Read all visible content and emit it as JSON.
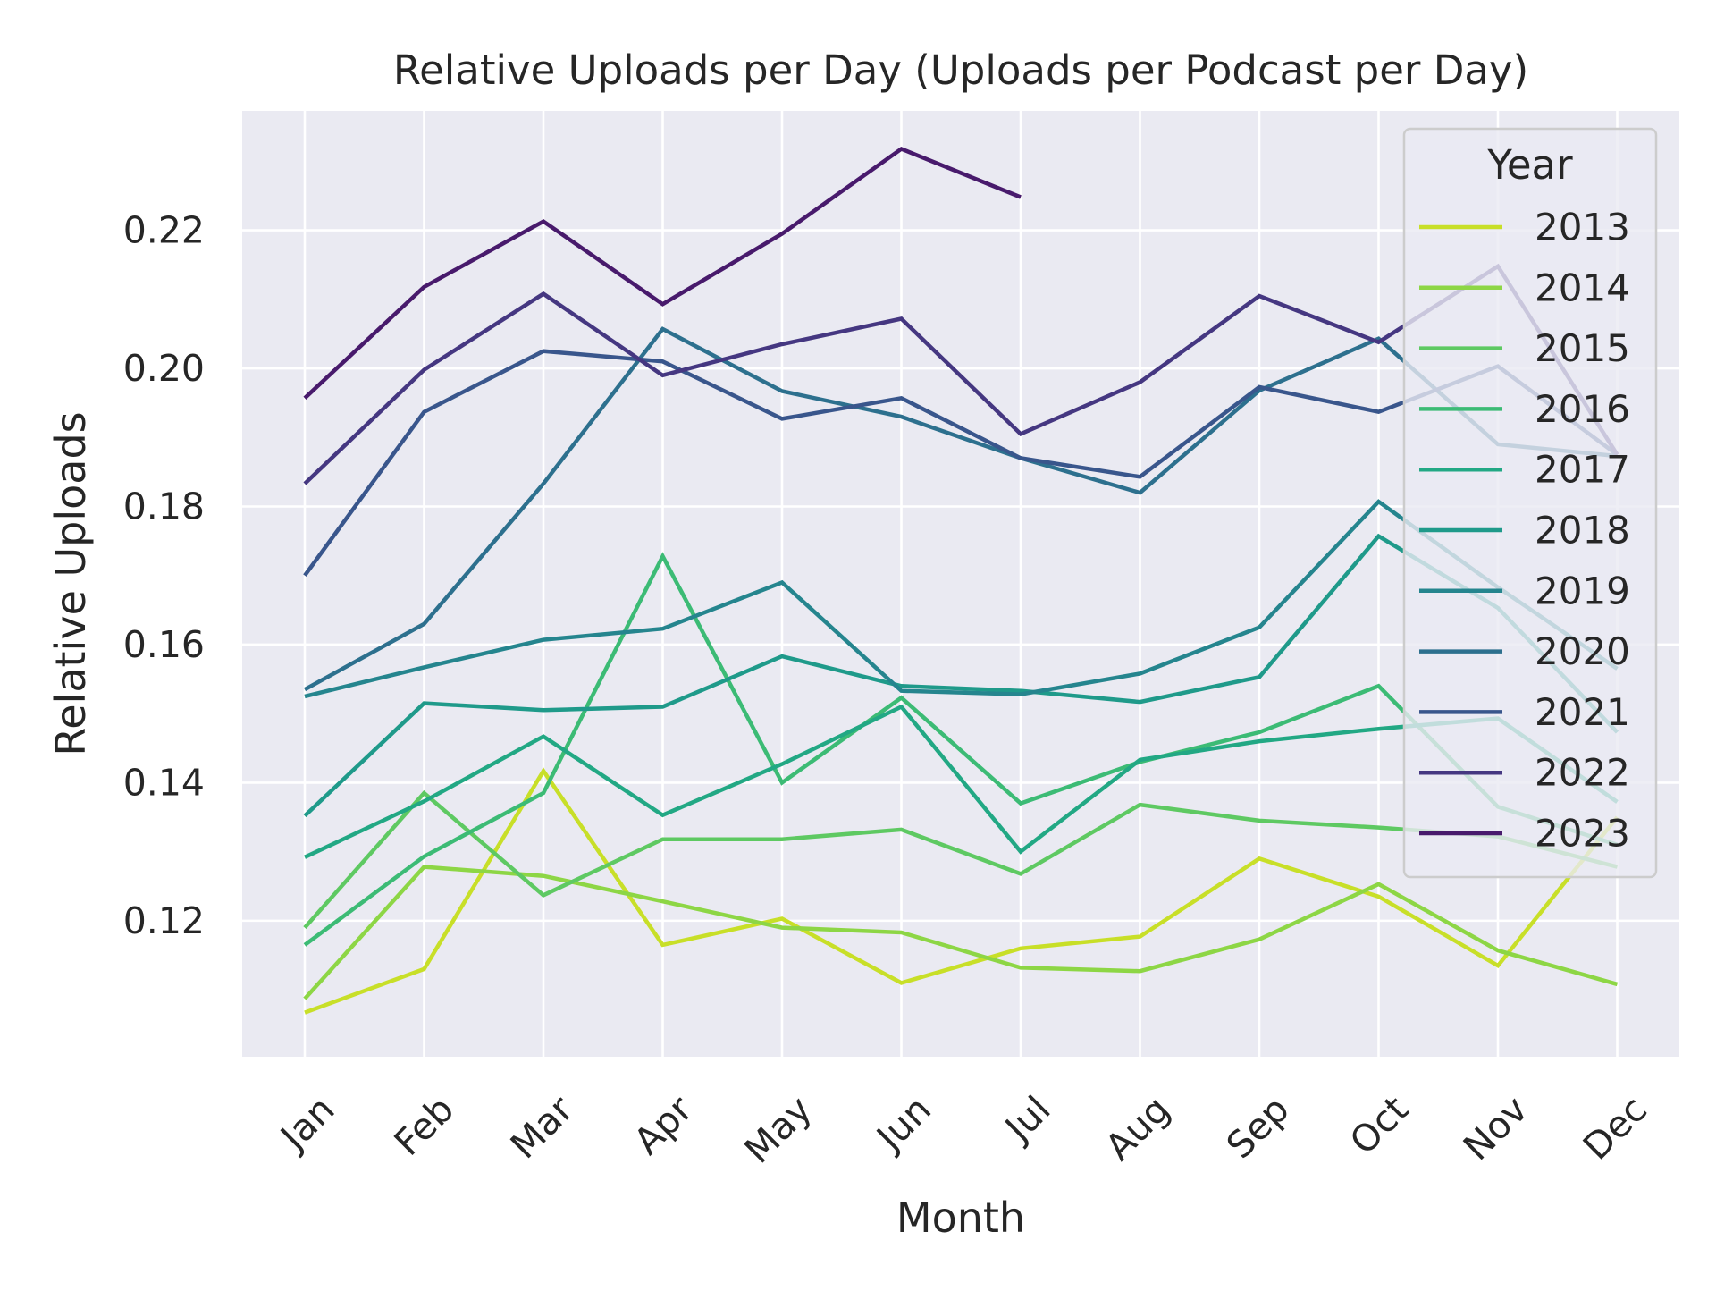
{
  "chart_data": {
    "type": "line",
    "title": "Relative Uploads per Day (Uploads per Podcast per Day)",
    "xlabel": "Month",
    "ylabel": "Relative Uploads",
    "categories": [
      "Jan",
      "Feb",
      "Mar",
      "Apr",
      "May",
      "Jun",
      "Jul",
      "Aug",
      "Sep",
      "Oct",
      "Nov",
      "Dec"
    ],
    "yticks": [
      "0.12",
      "0.14",
      "0.16",
      "0.18",
      "0.20",
      "0.22"
    ],
    "ylim": [
      0.1003,
      0.2373
    ],
    "grid": true,
    "background": "#eaeaf2",
    "legend": {
      "title": "Year",
      "placement": "top-right"
    },
    "series": [
      {
        "name": "2013",
        "color": "#c8df28",
        "values": [
          0.1067,
          0.113,
          0.1417,
          0.1165,
          0.1203,
          0.111,
          0.116,
          0.1177,
          0.129,
          0.1235,
          0.1135,
          0.135
        ]
      },
      {
        "name": "2014",
        "color": "#8dd645",
        "values": [
          0.1087,
          0.1278,
          0.1265,
          0.1228,
          0.119,
          0.1183,
          0.1132,
          0.1127,
          0.1173,
          0.1253,
          0.1157,
          0.1108
        ]
      },
      {
        "name": "2015",
        "color": "#5ec962",
        "values": [
          0.119,
          0.1385,
          0.1237,
          0.1318,
          0.1318,
          0.1332,
          0.1268,
          0.1368,
          0.1345,
          0.1335,
          0.1322,
          0.1278
        ]
      },
      {
        "name": "2016",
        "color": "#3cbb75",
        "values": [
          0.1165,
          0.1293,
          0.1385,
          0.1728,
          0.14,
          0.1523,
          0.137,
          0.143,
          0.1473,
          0.154,
          0.1365,
          0.131
        ]
      },
      {
        "name": "2017",
        "color": "#22a884",
        "values": [
          0.1292,
          0.1373,
          0.1467,
          0.1353,
          0.1427,
          0.151,
          0.13,
          0.1433,
          0.146,
          0.1478,
          0.1493,
          0.1372
        ]
      },
      {
        "name": "2018",
        "color": "#1f9a8a",
        "values": [
          0.1352,
          0.1515,
          0.1505,
          0.151,
          0.1583,
          0.154,
          0.1533,
          0.1517,
          0.1553,
          0.1757,
          0.1653,
          0.1473
        ]
      },
      {
        "name": "2019",
        "color": "#25858e",
        "values": [
          0.1525,
          0.1567,
          0.1607,
          0.1623,
          0.169,
          0.1533,
          0.1528,
          0.1558,
          0.1625,
          0.1807,
          0.1683,
          0.1565
        ]
      },
      {
        "name": "2020",
        "color": "#2d708e",
        "values": [
          0.1535,
          0.163,
          0.1833,
          0.2057,
          0.1967,
          0.193,
          0.187,
          0.182,
          0.1968,
          0.2043,
          0.189,
          0.1873
        ]
      },
      {
        "name": "2021",
        "color": "#39568c",
        "values": [
          0.17,
          0.1937,
          0.2025,
          0.201,
          0.1927,
          0.1957,
          0.187,
          0.1843,
          0.1973,
          0.1937,
          0.2003,
          0.1875
        ]
      },
      {
        "name": "2022",
        "color": "#453781",
        "values": [
          0.1833,
          0.1998,
          0.2108,
          0.199,
          0.2035,
          0.2072,
          0.1905,
          0.198,
          0.2105,
          0.2038,
          0.2148,
          0.1875
        ]
      },
      {
        "name": "2023",
        "color": "#481a6c",
        "values": [
          0.1957,
          0.2118,
          0.2213,
          0.2093,
          0.2195,
          0.2318,
          0.2248,
          null,
          null,
          null,
          null,
          null
        ]
      }
    ]
  }
}
